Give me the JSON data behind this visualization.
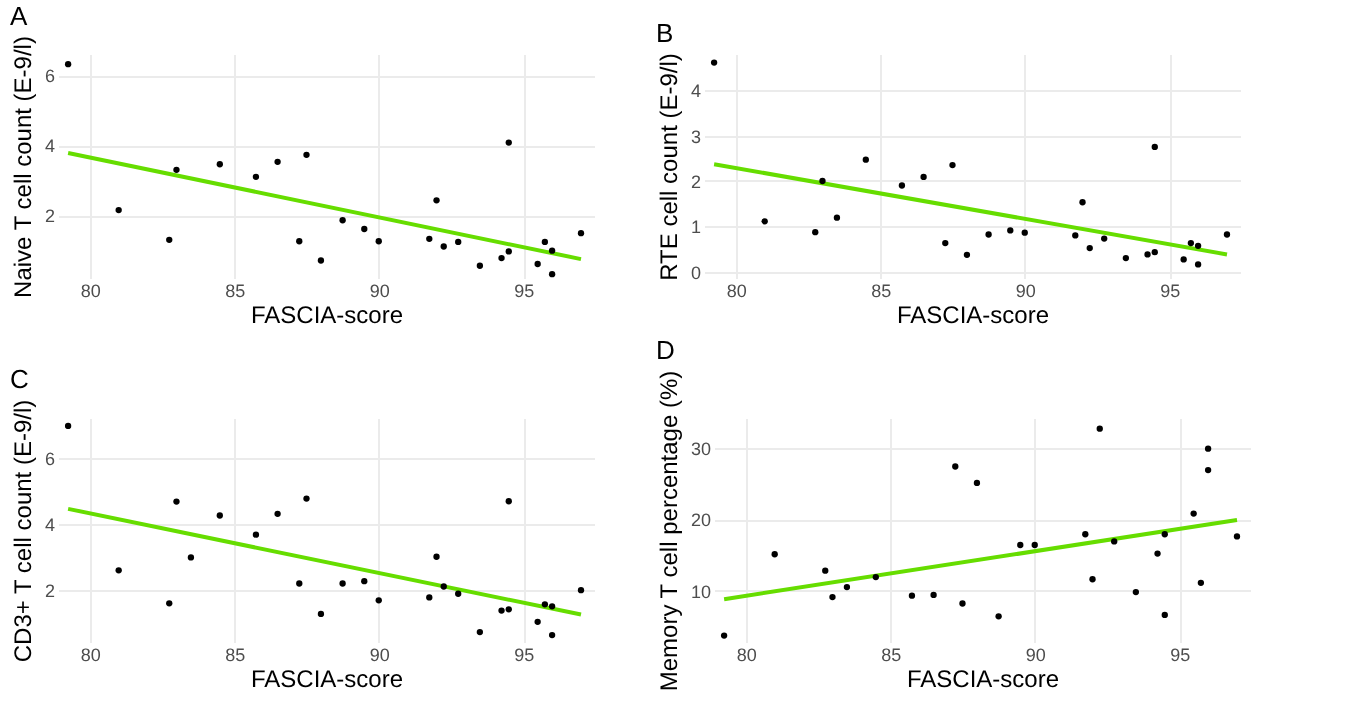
{
  "chart_data": [
    {
      "type": "scatter",
      "title": "A",
      "xlabel": "FASCIA-score",
      "ylabel": "Naive T cell count (E-9/l)",
      "xlim": [
        78.9,
        97.45
      ],
      "xticks": [
        80,
        85,
        90,
        95
      ],
      "ylim": [
        0.2,
        6.6
      ],
      "yticks": [
        2,
        4,
        6
      ],
      "grid": true,
      "series": [
        {
          "color": "#000000",
          "marker": "circle",
          "x": [
            79.25,
            81,
            82.75,
            83,
            84.5,
            85.75,
            86.5,
            87.25,
            87.5,
            88,
            88.75,
            89.5,
            90,
            91.75,
            92,
            92.25,
            92.75,
            93.5,
            94.25,
            94.5,
            94.5,
            95.5,
            95.75,
            96,
            96,
            97
          ],
          "values": [
            6.31,
            2.14,
            1.29,
            3.29,
            3.45,
            3.09,
            3.52,
            1.25,
            3.72,
            0.7,
            1.85,
            1.6,
            1.25,
            1.32,
            2.42,
            1.1,
            1.23,
            0.55,
            0.77,
            4.07,
            0.96,
            0.6,
            1.23,
            0.98,
            0.31,
            1.48
          ]
        },
        {
          "type": "line",
          "color": "#66dd00",
          "marker": "none",
          "x": [
            79.25,
            97
          ],
          "values": [
            3.77,
            0.74
          ]
        }
      ]
    },
    {
      "type": "scatter",
      "title": "B",
      "xlabel": "FASCIA-score",
      "ylabel": "RTE cell count (E-9/l)",
      "xlim": [
        78.9,
        97.45
      ],
      "xticks": [
        80,
        85,
        90,
        95
      ],
      "ylim": [
        -0.14,
        4.8
      ],
      "yticks": [
        0,
        1,
        2,
        3,
        4
      ],
      "grid": true,
      "series": [
        {
          "color": "#000000",
          "marker": "circle",
          "x": [
            79.25,
            81,
            82.75,
            83,
            83.5,
            84.5,
            85.75,
            86.5,
            87.25,
            87.5,
            88,
            88.75,
            89.5,
            90,
            91.75,
            92,
            92.25,
            92.75,
            93.5,
            94.25,
            94.5,
            94.5,
            95.5,
            95.75,
            96,
            96,
            97
          ],
          "values": [
            4.61,
            1.11,
            0.87,
            2.0,
            1.19,
            2.47,
            1.9,
            2.09,
            0.63,
            2.35,
            0.37,
            0.82,
            0.91,
            0.86,
            0.8,
            1.53,
            0.52,
            0.73,
            0.3,
            0.38,
            2.75,
            0.43,
            0.27,
            0.63,
            0.57,
            0.16,
            0.82
          ]
        },
        {
          "type": "line",
          "color": "#66dd00",
          "marker": "none",
          "x": [
            79.25,
            97
          ],
          "values": [
            2.37,
            0.38
          ]
        }
      ]
    },
    {
      "type": "scatter",
      "title": "C",
      "xlabel": "FASCIA-score",
      "ylabel": "CD3+ T cell count (E-9/l)",
      "xlim": [
        78.9,
        97.45
      ],
      "xticks": [
        80,
        85,
        90,
        95
      ],
      "ylim": [
        0.42,
        7.2
      ],
      "yticks": [
        2,
        4,
        6
      ],
      "grid": true,
      "series": [
        {
          "color": "#000000",
          "marker": "circle",
          "x": [
            79.25,
            81,
            82.75,
            83,
            83.5,
            84.5,
            85.75,
            86.5,
            87.25,
            87.5,
            88,
            88.75,
            89.5,
            90,
            91.75,
            92,
            92.25,
            92.75,
            93.5,
            94.25,
            94.5,
            94.5,
            95.5,
            95.75,
            96,
            96,
            97
          ],
          "values": [
            6.96,
            2.59,
            1.59,
            4.67,
            2.98,
            4.25,
            3.67,
            4.3,
            2.19,
            4.76,
            1.27,
            2.19,
            2.26,
            1.68,
            1.77,
            3.0,
            2.1,
            1.88,
            0.72,
            1.37,
            4.68,
            1.41,
            1.03,
            1.56,
            1.5,
            0.63,
            1.99
          ]
        },
        {
          "type": "line",
          "color": "#66dd00",
          "marker": "none",
          "x": [
            79.25,
            97
          ],
          "values": [
            4.45,
            1.25
          ]
        }
      ]
    },
    {
      "type": "scatter",
      "title": "D",
      "xlabel": "FASCIA-score",
      "ylabel": "Memory T cell percentage (%)",
      "xlim": [
        78.9,
        97.45
      ],
      "xticks": [
        80,
        85,
        90,
        95
      ],
      "ylim": [
        2.8,
        34.2
      ],
      "yticks": [
        10,
        20,
        30
      ],
      "grid": true,
      "series": [
        {
          "color": "#000000",
          "marker": "circle",
          "x": [
            79.25,
            81,
            82.75,
            83,
            83.5,
            84.5,
            85.75,
            86.5,
            87.25,
            87.5,
            88,
            88.75,
            89.5,
            90,
            91.75,
            92,
            92.25,
            92.75,
            93.5,
            94.25,
            94.5,
            94.5,
            95.5,
            95.75,
            96,
            96,
            97
          ],
          "values": [
            3.7,
            15.1,
            12.8,
            9.1,
            10.5,
            11.9,
            9.3,
            9.4,
            27.4,
            8.2,
            25.1,
            6.4,
            16.4,
            16.4,
            17.9,
            11.6,
            32.7,
            16.9,
            9.8,
            15.2,
            6.6,
            17.9,
            20.8,
            11.1,
            29.9,
            26.9,
            17.6
          ]
        },
        {
          "type": "line",
          "color": "#66dd00",
          "marker": "none",
          "x": [
            79.25,
            97
          ],
          "values": [
            8.8,
            19.9
          ]
        }
      ]
    }
  ]
}
